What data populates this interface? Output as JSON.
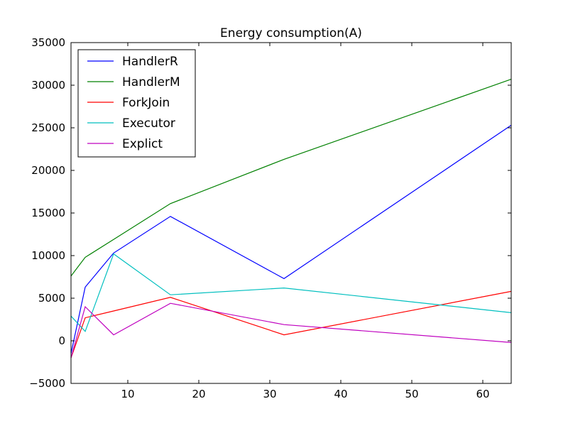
{
  "chart_data": {
    "type": "line",
    "title": "Energy consumption(A)",
    "xlabel": "",
    "ylabel": "",
    "xlim": [
      2,
      64
    ],
    "ylim": [
      -5000,
      35000
    ],
    "xticks": [
      10,
      20,
      30,
      40,
      50,
      60
    ],
    "xtick_labels": [
      "10",
      "20",
      "30",
      "40",
      "50",
      "60"
    ],
    "yticks": [
      -5000,
      0,
      5000,
      10000,
      15000,
      20000,
      25000,
      30000,
      35000
    ],
    "ytick_labels": [
      "−5000",
      "0",
      "5000",
      "10000",
      "15000",
      "20000",
      "25000",
      "30000",
      "35000"
    ],
    "grid": false,
    "legend_position": "upper-left",
    "x": [
      2,
      4,
      8,
      16,
      32,
      64
    ],
    "series": [
      {
        "name": "HandlerR",
        "color": "#0000ff",
        "values": [
          -1500,
          6300,
          10300,
          14600,
          7300,
          25300
        ]
      },
      {
        "name": "HandlerM",
        "color": "#008000",
        "values": [
          7600,
          9800,
          11900,
          16100,
          21300,
          30700
        ]
      },
      {
        "name": "ForkJoin",
        "color": "#ff0000",
        "values": [
          -2000,
          2700,
          3500,
          5100,
          700,
          5800
        ]
      },
      {
        "name": "Executor",
        "color": "#00bfbf",
        "values": [
          2900,
          1100,
          10200,
          5400,
          6200,
          3300
        ]
      },
      {
        "name": "Explict",
        "color": "#bf00bf",
        "values": [
          -2000,
          4000,
          700,
          4400,
          1900,
          -200
        ]
      }
    ]
  }
}
